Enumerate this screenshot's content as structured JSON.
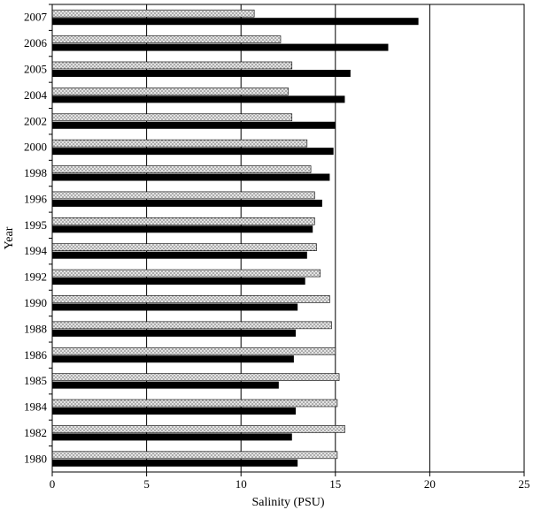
{
  "chart_data": {
    "type": "bar",
    "orientation": "horizontal",
    "title": "",
    "xlabel": "Salinity (PSU)",
    "ylabel": "Year",
    "xlim": [
      0,
      25
    ],
    "xticks": [
      "0",
      "5",
      "10",
      "15",
      "20",
      "25"
    ],
    "categories": [
      "2007",
      "2006",
      "2005",
      "2004",
      "2002",
      "2000",
      "1998",
      "1996",
      "1995",
      "1994",
      "1992",
      "1990",
      "1988",
      "1986",
      "1985",
      "1984",
      "1982",
      "1980"
    ],
    "series": [
      {
        "pattern": "dotted-light",
        "color": "#bdbdbd",
        "values": [
          10.7,
          12.1,
          12.7,
          12.5,
          12.7,
          13.5,
          13.7,
          13.9,
          13.9,
          14.0,
          14.2,
          14.7,
          14.8,
          15.0,
          15.2,
          15.1,
          15.5,
          15.1
        ]
      },
      {
        "pattern": "solid-black",
        "color": "#000000",
        "values": [
          19.4,
          17.8,
          15.8,
          15.5,
          15.0,
          14.9,
          14.7,
          14.3,
          13.8,
          13.5,
          13.4,
          13.0,
          12.9,
          12.8,
          12.0,
          12.9,
          12.7,
          13.0
        ]
      }
    ],
    "grid": "vertical-major",
    "legend": "none"
  }
}
